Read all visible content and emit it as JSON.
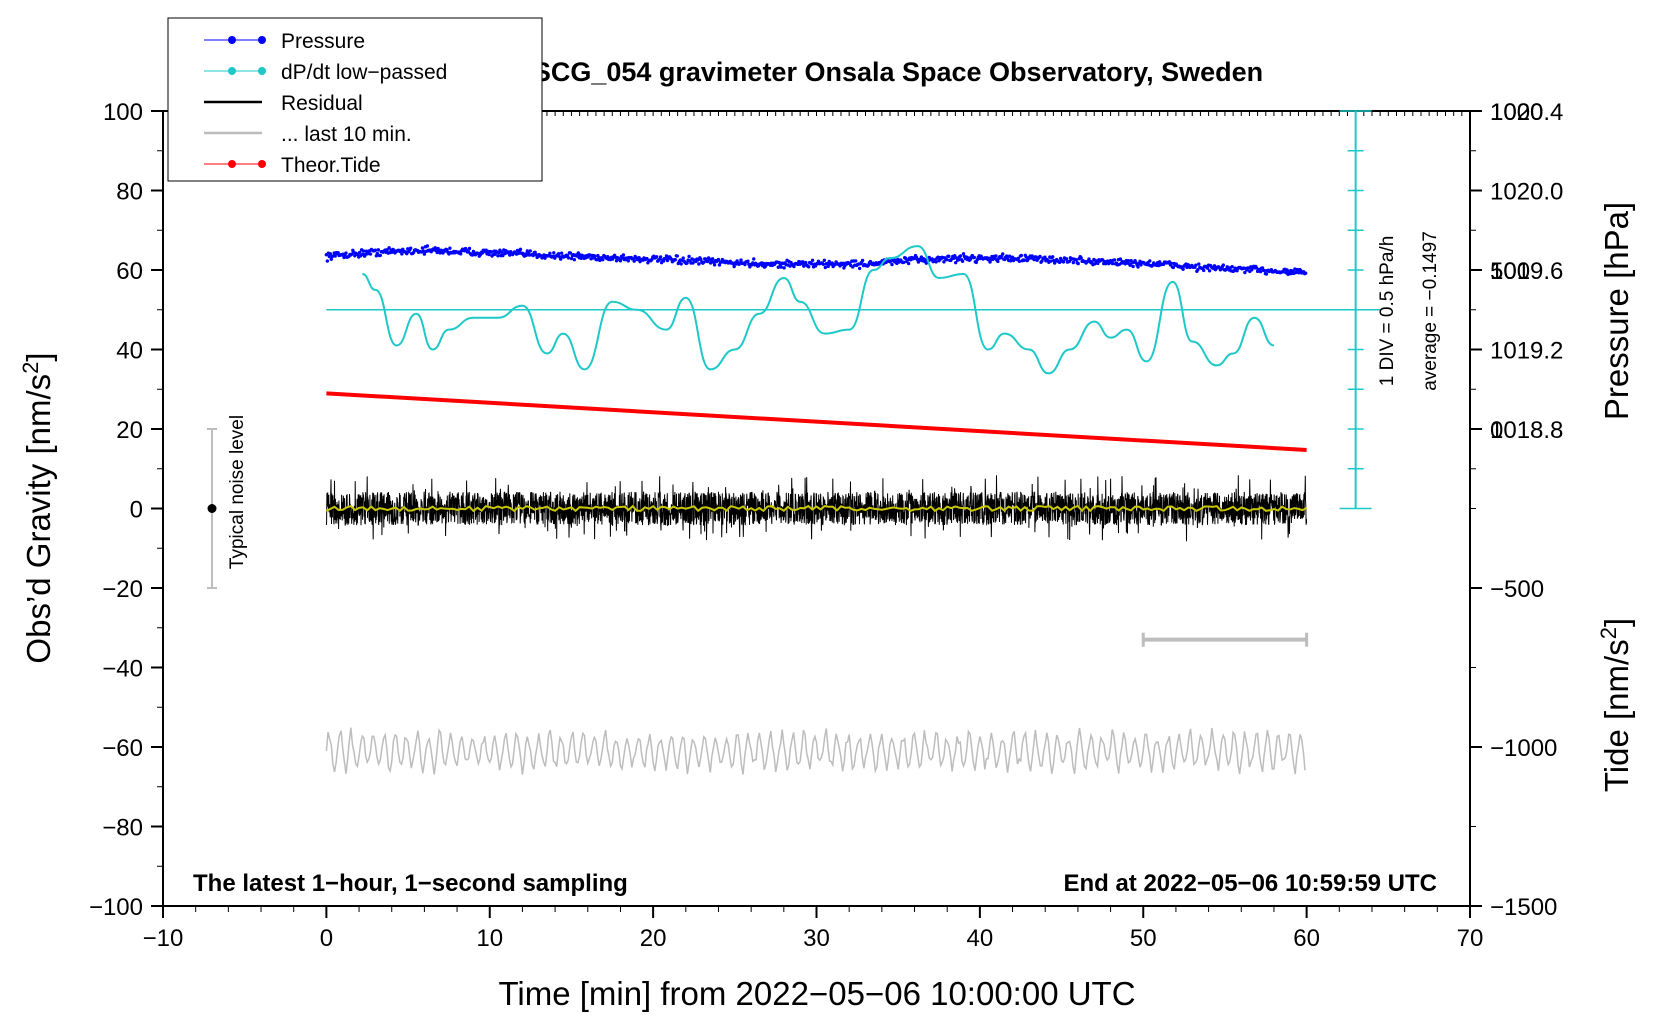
{
  "chart_data": {
    "type": "line",
    "title": "SCG_054 gravimeter Onsala Space Observatory, Sweden",
    "xlabel": "Time [min] from 2022−05−06 10:00:00 UTC",
    "ylabel_left": "Obs’d Gravity [nm/s",
    "ylabel_left_sup": "2",
    "ylabel_left_end": "]",
    "ylabel_pressure": "Pressure [hPa]",
    "ylabel_tide": "Tide [nm/s",
    "ylabel_tide_sup": "2",
    "ylabel_tide_end": "]",
    "xlim": [
      -10,
      70
    ],
    "ylim": [
      -100,
      100
    ],
    "x_ticks": [
      -10,
      0,
      10,
      20,
      30,
      40,
      50,
      60,
      70
    ],
    "x_tick_labels": [
      "−10",
      "0",
      "10",
      "20",
      "30",
      "40",
      "50",
      "60",
      "70"
    ],
    "y_ticks": [
      -100,
      -80,
      -60,
      -40,
      -20,
      0,
      20,
      40,
      60,
      80,
      100
    ],
    "y_tick_labels": [
      "−100",
      "−80",
      "−60",
      "−40",
      "−20",
      "0",
      "20",
      "40",
      "60",
      "80",
      "100"
    ],
    "pressure_ticks": [
      1018.8,
      1019.2,
      1019.6,
      1020.0,
      1020.4
    ],
    "pressure_tick_labels": [
      "1018.8",
      "1019.2",
      "1019.6",
      "1020.0",
      "1020.4"
    ],
    "pressure_axis_map": {
      "pressure_at_gravity_0": 1018.4,
      "hpa_per_nm_s2": 0.02
    },
    "tide_ticks": [
      -1500,
      -1000,
      -500,
      0,
      500,
      1000
    ],
    "tide_tick_labels": [
      "−1500",
      "−1000",
      "−500",
      "0",
      "500",
      "1000"
    ],
    "tide_axis_map": {
      "tide_at_gravity_minus100": -1500,
      "nm_s2_per_gravity_unit": 12.5
    },
    "legend": [
      {
        "label": "Pressure",
        "color": "#0000ff",
        "style": "dots"
      },
      {
        "label": "dP/dt low−passed",
        "color": "#1ec8c8",
        "style": "dots"
      },
      {
        "label": "Residual",
        "color": "#000000",
        "style": "line"
      },
      {
        "label": "... last 10 min.",
        "color": "#bdbdbd",
        "style": "line"
      },
      {
        "label": "Theor.Tide",
        "color": "#ff0000",
        "style": "dots"
      }
    ],
    "series": [
      {
        "name": "Pressure",
        "color": "#0000ff",
        "axis": "pressure",
        "x": [
          0,
          3,
          6,
          9,
          12,
          15,
          18,
          21,
          24,
          27,
          30,
          33,
          36,
          39,
          42,
          45,
          48,
          51,
          54,
          57,
          60
        ],
        "y": [
          1019.67,
          1019.69,
          1019.7,
          1019.69,
          1019.68,
          1019.67,
          1019.66,
          1019.65,
          1019.64,
          1019.63,
          1019.63,
          1019.63,
          1019.65,
          1019.66,
          1019.66,
          1019.65,
          1019.64,
          1019.63,
          1019.61,
          1019.6,
          1019.59
        ]
      },
      {
        "name": "dP/dt low−passed",
        "color": "#1ec8c8",
        "axis": "gravity",
        "x": [
          2.2,
          3,
          4.3,
          5.5,
          6.5,
          7.5,
          9,
          10.5,
          12,
          13.5,
          14.5,
          15.8,
          17.5,
          19,
          20.8,
          22,
          23.5,
          25,
          26.5,
          28,
          29,
          30.5,
          32,
          33.5,
          34.5,
          36.2,
          37.5,
          39,
          40.5,
          41.5,
          43,
          44.2,
          45.5,
          47,
          48,
          49,
          50.2,
          51.8,
          53,
          54.5,
          55.5,
          56.8,
          58
        ],
        "y": [
          59,
          55,
          41,
          49,
          40,
          45,
          48,
          48,
          51,
          39,
          44,
          35,
          52,
          50,
          45,
          53,
          35,
          40,
          49,
          58,
          52,
          44,
          45,
          60,
          63,
          66,
          58,
          59,
          40,
          44,
          40,
          34,
          40,
          47,
          43,
          45,
          37,
          57,
          42,
          36,
          39,
          48,
          41
        ]
      },
      {
        "name": "Residual",
        "color": "#000000",
        "axis": "gravity",
        "x": [
          0,
          60
        ],
        "y": [
          0,
          0
        ],
        "noise_amplitude": 6
      },
      {
        "name": "... last 10 min.",
        "color": "#bdbdbd",
        "axis": "gravity",
        "x": [
          0,
          60
        ],
        "y": [
          -61,
          -61
        ],
        "noise_amplitude": 5
      },
      {
        "name": "Theor.Tide",
        "color": "#ff0000",
        "axis": "tide",
        "x": [
          0,
          60
        ],
        "y": [
          112,
          -66
        ]
      }
    ],
    "reference_line": {
      "name": "dP/dt zero",
      "y": 50,
      "x": [
        0,
        64.5
      ]
    },
    "scale_bar": {
      "label_1": "1 DIV = 0.5 hPa/h",
      "label_2": "average = −0.1497",
      "x": 63,
      "y_range": [
        0,
        100
      ],
      "divisions": 10
    },
    "noise_bar": {
      "label": "Typical noise level",
      "x": -7,
      "y": 0,
      "half_range": 20
    },
    "gray_range_marker": {
      "x": [
        50,
        60
      ],
      "y": -33
    },
    "annotations": {
      "left": "The latest 1−hour, 1−second sampling",
      "right": "End at 2022−05−06 10:59:59 UTC"
    }
  }
}
